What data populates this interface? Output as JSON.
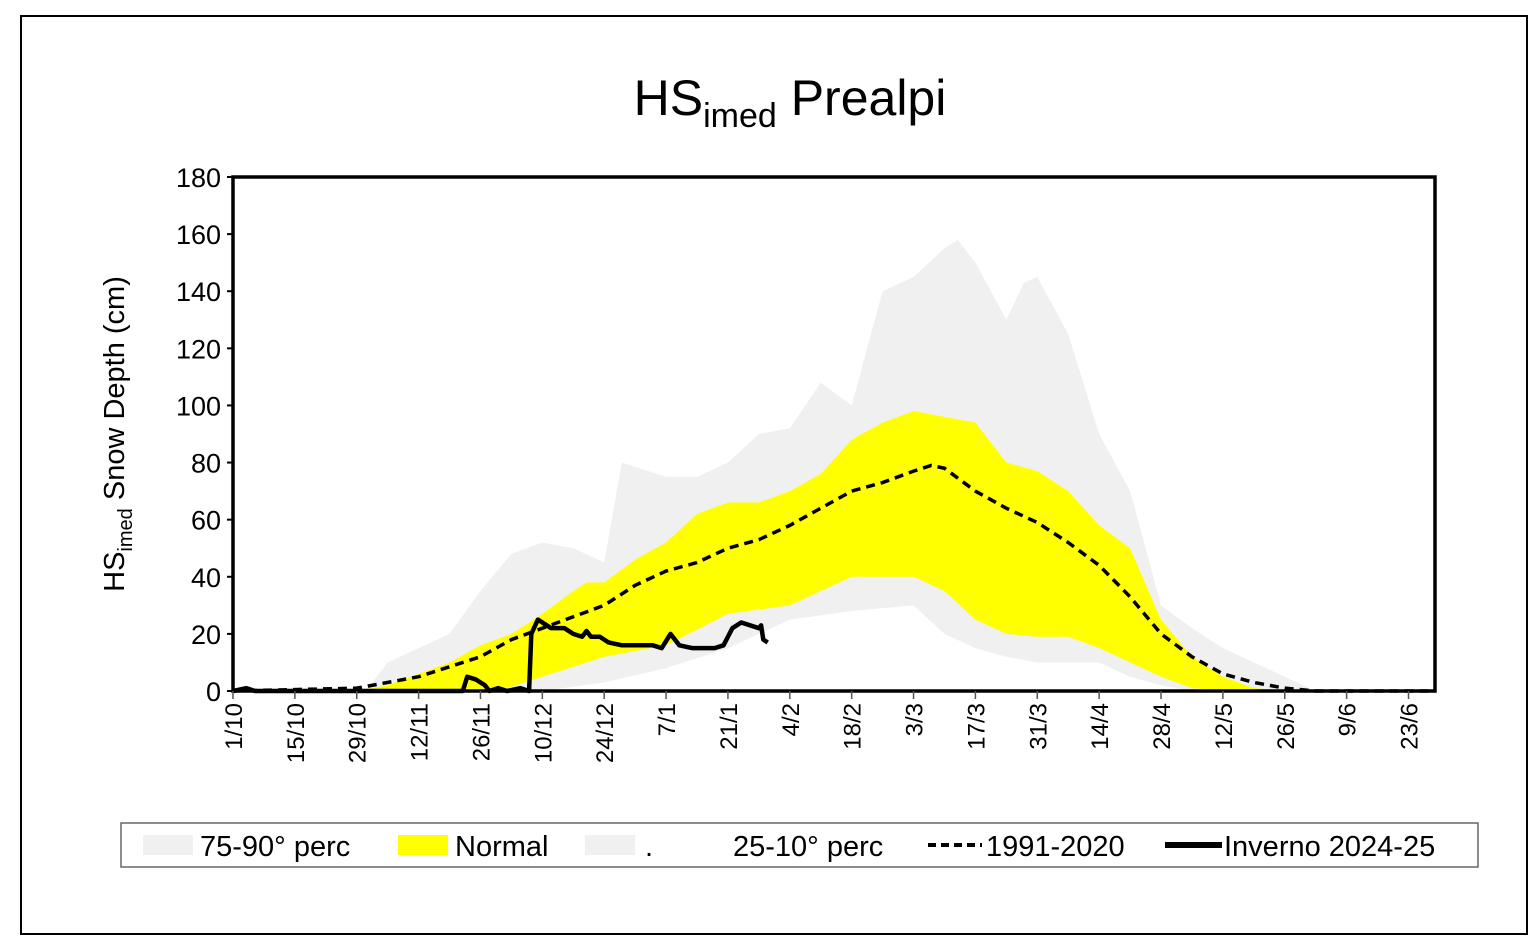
{
  "chart_data": {
    "type": "area",
    "title": "HS",
    "title_sub": "imed",
    "title_suffix": " Prealpi",
    "ylabel_main": "HS",
    "ylabel_sub": "imed",
    "ylabel_suffix": " Snow Depth  (cm)",
    "xlabel": "",
    "ylim": [
      0,
      180
    ],
    "yticks": [
      0,
      20,
      40,
      60,
      80,
      100,
      120,
      140,
      160,
      180
    ],
    "x_unit": "days since 1 October",
    "xlim": [
      0,
      272
    ],
    "xtick_labels": [
      "1/10",
      "15/10",
      "29/10",
      "12/11",
      "26/11",
      "10/12",
      "24/12",
      "7/1",
      "21/1",
      "4/2",
      "18/2",
      "3/3",
      "17/3",
      "31/3",
      "14/4",
      "28/4",
      "12/5",
      "26/5",
      "9/6",
      "23/6"
    ],
    "xtick_step_days": 14,
    "colors": {
      "p90": "#f0f0f0",
      "normal": "#ffff00",
      "line": "#000000"
    },
    "legend": {
      "placement": "bottom",
      "entries": [
        "75-90° perc",
        "Normal",
        ".",
        "25-10° perc",
        "1991-2020",
        "Inverno 2024-25"
      ]
    },
    "series": [
      {
        "name": "90° perc (upper)",
        "x": [
          0,
          30,
          35,
          42,
          49,
          56,
          63,
          70,
          77,
          84,
          88,
          98,
          105,
          112,
          119,
          126,
          133,
          140,
          147,
          154,
          161,
          164,
          168,
          175,
          179,
          182,
          189,
          196,
          203,
          210,
          217,
          224,
          231,
          238,
          245,
          272
        ],
        "values": [
          0,
          0,
          10,
          15,
          20,
          35,
          48,
          52,
          50,
          45,
          80,
          75,
          75,
          80,
          90,
          92,
          108,
          100,
          140,
          145,
          155,
          158,
          150,
          130,
          143,
          145,
          125,
          90,
          70,
          30,
          22,
          15,
          10,
          5,
          0,
          0
        ]
      },
      {
        "name": "75° perc (normal upper)",
        "x": [
          0,
          28,
          35,
          42,
          49,
          56,
          63,
          70,
          77,
          80,
          84,
          91,
          98,
          105,
          112,
          119,
          126,
          133,
          140,
          147,
          154,
          161,
          168,
          175,
          182,
          189,
          196,
          203,
          210,
          217,
          224,
          231,
          238,
          272
        ],
        "values": [
          0,
          0,
          2,
          6,
          10,
          16,
          20,
          27,
          35,
          38,
          38,
          46,
          52,
          62,
          66,
          66,
          70,
          76,
          88,
          94,
          98,
          96,
          94,
          80,
          77,
          70,
          58,
          50,
          25,
          12,
          5,
          1,
          0,
          0
        ]
      },
      {
        "name": "25° perc (normal lower)",
        "x": [
          0,
          60,
          70,
          84,
          98,
          112,
          126,
          140,
          154,
          161,
          168,
          175,
          182,
          189,
          196,
          203,
          210,
          217,
          224,
          272
        ],
        "values": [
          0,
          0,
          5,
          12,
          16,
          27,
          30,
          40,
          40,
          35,
          25,
          20,
          19,
          19,
          15,
          10,
          5,
          1,
          0,
          0
        ]
      },
      {
        "name": "10° perc (lower)",
        "x": [
          0,
          70,
          84,
          98,
          112,
          126,
          140,
          154,
          161,
          168,
          175,
          182,
          196,
          203,
          210,
          217,
          272
        ],
        "values": [
          0,
          0,
          3,
          8,
          15,
          25,
          28,
          30,
          20,
          15,
          12,
          10,
          10,
          5,
          2,
          0,
          0
        ]
      },
      {
        "name": "1991-2020",
        "x": [
          0,
          28,
          42,
          56,
          63,
          70,
          77,
          84,
          91,
          98,
          105,
          112,
          119,
          126,
          133,
          140,
          147,
          154,
          158,
          161,
          168,
          175,
          182,
          189,
          196,
          203,
          210,
          217,
          224,
          231,
          238,
          245,
          272
        ],
        "values": [
          0,
          1,
          5,
          12,
          18,
          22,
          26,
          30,
          37,
          42,
          45,
          50,
          53,
          58,
          64,
          70,
          73,
          77,
          79,
          78,
          70,
          64,
          59,
          52,
          44,
          33,
          20,
          12,
          6,
          3,
          1,
          0,
          0
        ]
      },
      {
        "name": "Inverno 2024-25",
        "x": [
          0,
          3,
          5,
          52,
          53,
          55,
          57,
          58,
          60,
          62,
          65,
          67,
          67.5,
          69,
          72,
          75,
          77,
          79,
          80,
          81,
          83,
          85,
          88,
          91,
          95,
          97,
          99,
          101,
          104,
          107,
          109,
          111,
          113,
          115,
          117,
          119,
          119.5,
          120,
          121
        ],
        "values": [
          0,
          1,
          0,
          0,
          5,
          4,
          2,
          0,
          1,
          0,
          1,
          0,
          20,
          25,
          22,
          22,
          20,
          19,
          21,
          19,
          19,
          17,
          16,
          16,
          16,
          15,
          20,
          16,
          15,
          15,
          15,
          16,
          22,
          24,
          23,
          22,
          23,
          18,
          17
        ]
      }
    ]
  }
}
